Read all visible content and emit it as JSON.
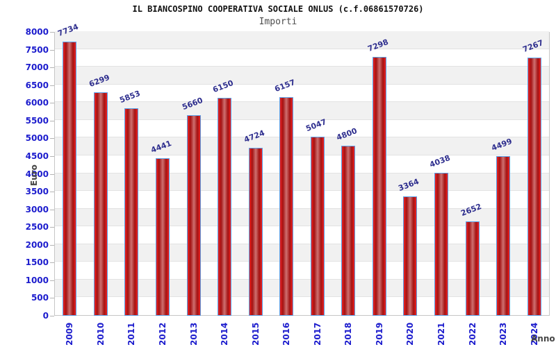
{
  "header": {
    "title": "IL BIANCOSPINO COOPERATIVA SOCIALE ONLUS (c.f.06861570726)",
    "subtitle": "Importi"
  },
  "chart_data": {
    "type": "bar",
    "title": "IL BIANCOSPINO COOPERATIVA SOCIALE ONLUS (c.f.06861570726)",
    "subtitle": "Importi",
    "xlabel": "Anno",
    "ylabel": "Euro",
    "categories": [
      "2009",
      "2010",
      "2011",
      "2012",
      "2013",
      "2014",
      "2015",
      "2016",
      "2017",
      "2018",
      "2019",
      "2020",
      "2021",
      "2022",
      "2023",
      "2024"
    ],
    "values": [
      7734,
      6299,
      5853,
      4441,
      5660,
      6150,
      4724,
      6157,
      5047,
      4800,
      7298,
      3364,
      4038,
      2652,
      4499,
      7267
    ],
    "value_labels": [
      "7734",
      "6299",
      "5853",
      "4441",
      "5660",
      "6150",
      "4724",
      "6157",
      "5047",
      "4800",
      "7298",
      "3364",
      "4038",
      "2652",
      "4499",
      "7267"
    ],
    "ylim": [
      0,
      8000
    ],
    "ytick_step": 500,
    "ytick_labels": [
      "0",
      "500",
      "1000",
      "1500",
      "2000",
      "2500",
      "3000",
      "3500",
      "4000",
      "4500",
      "5000",
      "5500",
      "6000",
      "6500",
      "7000",
      "7500",
      "8000"
    ],
    "grid": true,
    "legend_position": "none",
    "colors": {
      "bar_fill_bright": "#ee2222",
      "bar_fill_dark": "#a31212",
      "bar_fill_highlight": "#cf7070",
      "bar_border": "#58a0e8",
      "axis_tick_label": "#1c1ccd",
      "value_label": "#2e2e8e",
      "band_alt": "#f1f1f1",
      "band_main": "#ffffff",
      "gridline": "#e2e2e2",
      "plot_border": "#c6c6c6",
      "title": "#111111",
      "subtitle": "#4d4d4d",
      "axis_title": "#454545"
    }
  }
}
